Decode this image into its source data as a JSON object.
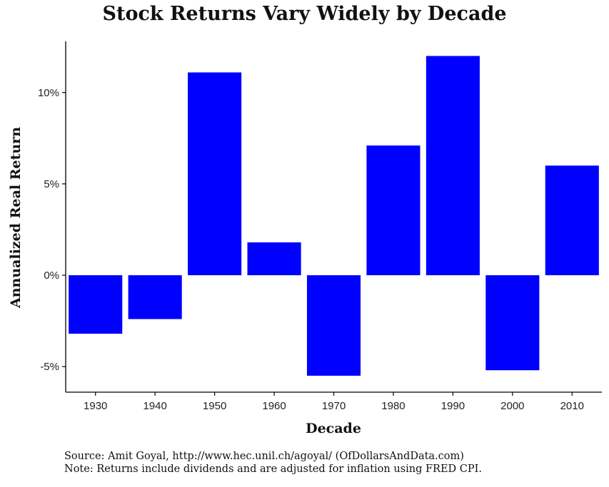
{
  "chart_data": {
    "type": "bar",
    "title": "Stock Returns Vary Widely by Decade",
    "xlabel": "Decade",
    "ylabel": "Annualized Real Return",
    "categories": [
      "1930",
      "1940",
      "1950",
      "1960",
      "1970",
      "1980",
      "1990",
      "2000",
      "2010"
    ],
    "values": [
      -3.2,
      -2.4,
      11.1,
      1.8,
      -5.5,
      7.1,
      12.0,
      -5.2,
      6.0
    ],
    "ylim": [
      -6.4,
      12.8
    ],
    "yticks": [
      -5,
      0,
      5,
      10
    ],
    "ytick_labels": [
      "-5%",
      "0%",
      "5%",
      "10%"
    ],
    "bar_color": "#0000ff",
    "grid": false,
    "legend": "none"
  },
  "notes": {
    "source": "Source: Amit Goyal, http://www.hec.unil.ch/agoyal/ (OfDollarsAndData.com)",
    "note": "Note: Returns include dividends and are adjusted for inflation using FRED CPI."
  }
}
